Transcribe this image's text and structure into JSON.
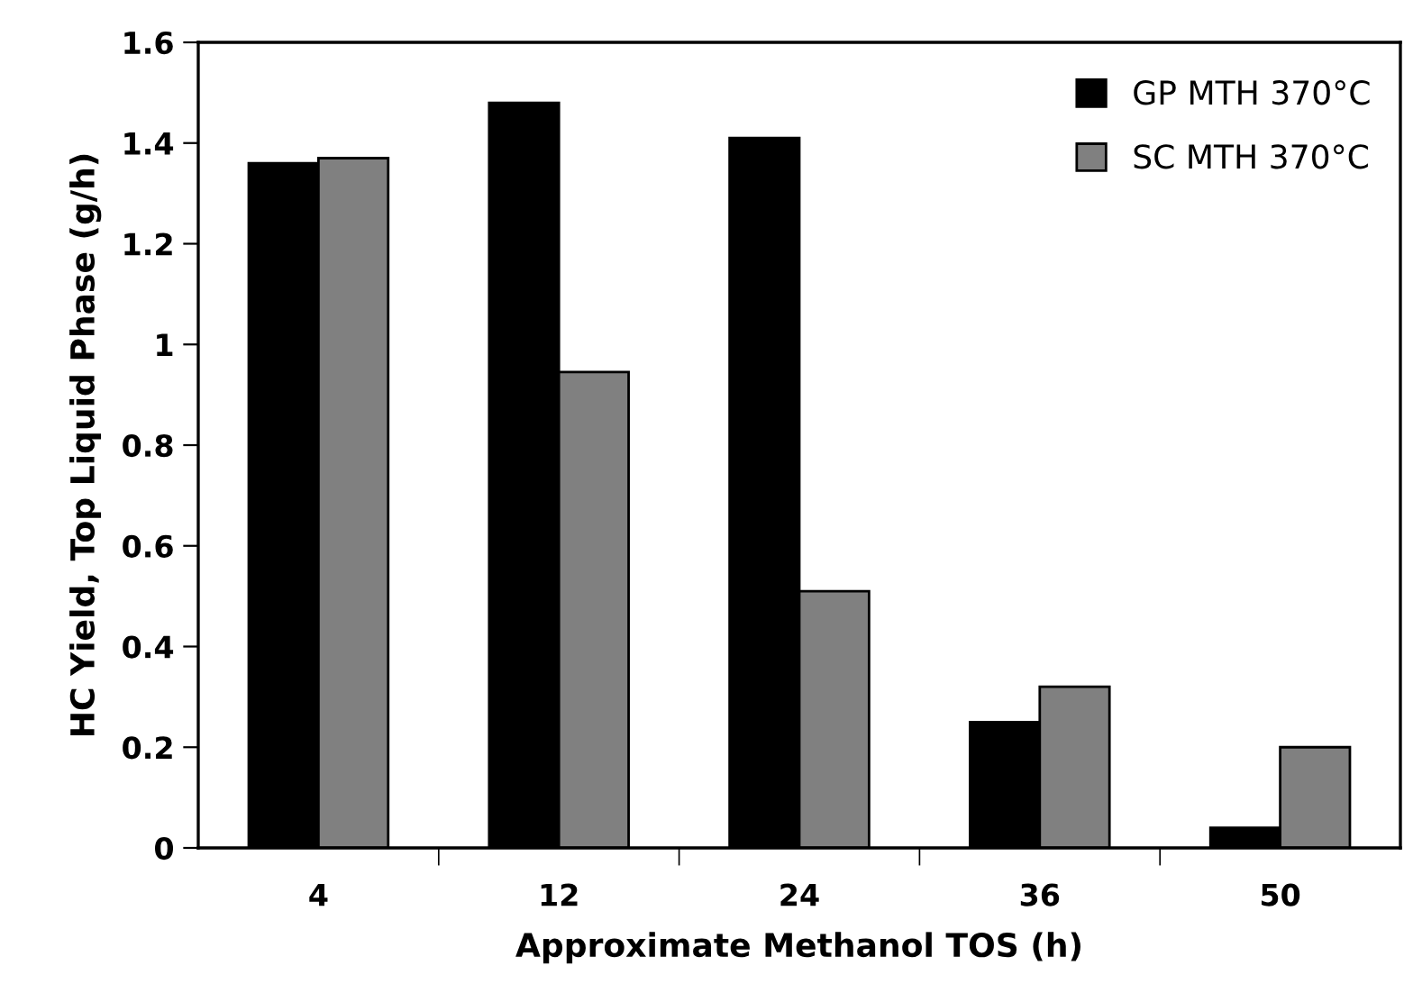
{
  "chart_data": {
    "type": "bar",
    "xlabel": "Approximate Methanol TOS (h)",
    "ylabel": "HC Yield, Top Liquid Phase (g/h)",
    "categories": [
      "4",
      "12",
      "24",
      "36",
      "50"
    ],
    "series": [
      {
        "name": "GP MTH 370°C",
        "color": "#000000",
        "values": [
          1.36,
          1.48,
          1.41,
          0.25,
          0.04
        ]
      },
      {
        "name": "SC MTH 370°C",
        "color": "#808080",
        "values": [
          1.37,
          0.945,
          0.51,
          0.32,
          0.2
        ]
      }
    ],
    "ylim": [
      0,
      1.6
    ],
    "yticks": [
      {
        "value": 0,
        "label": "0"
      },
      0.2,
      0.4,
      0.6,
      0.8,
      {
        "value": 1,
        "label": "1"
      },
      1.2,
      1.4,
      1.6
    ],
    "grid": false,
    "legend": "top right"
  }
}
